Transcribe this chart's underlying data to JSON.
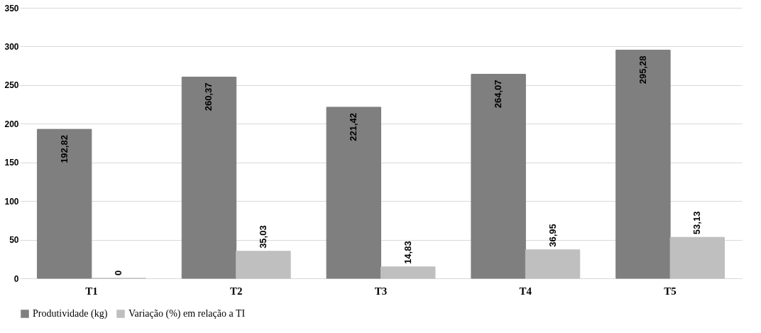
{
  "chart_data": {
    "type": "bar",
    "categories": [
      "T1",
      "T2",
      "T3",
      "T4",
      "T5"
    ],
    "series": [
      {
        "name": "Produtividade (kg)",
        "color": "#7f7f7f",
        "values": [
          192.82,
          260.37,
          221.42,
          264.07,
          295.28
        ],
        "value_labels": [
          "192,82",
          "260,37",
          "221,42",
          "264,07",
          "295,28"
        ]
      },
      {
        "name": "Variação (%) em relação a TI",
        "color": "#bfbfbf",
        "values": [
          0,
          35.03,
          14.83,
          36.95,
          53.13
        ],
        "value_labels": [
          "0",
          "35,03",
          "14,83",
          "36,95",
          "53,13"
        ]
      }
    ],
    "ylim": [
      0,
      350
    ],
    "yticks": [
      0,
      50,
      100,
      150,
      200,
      250,
      300,
      350
    ],
    "grid": "y",
    "legend": "bottom"
  }
}
